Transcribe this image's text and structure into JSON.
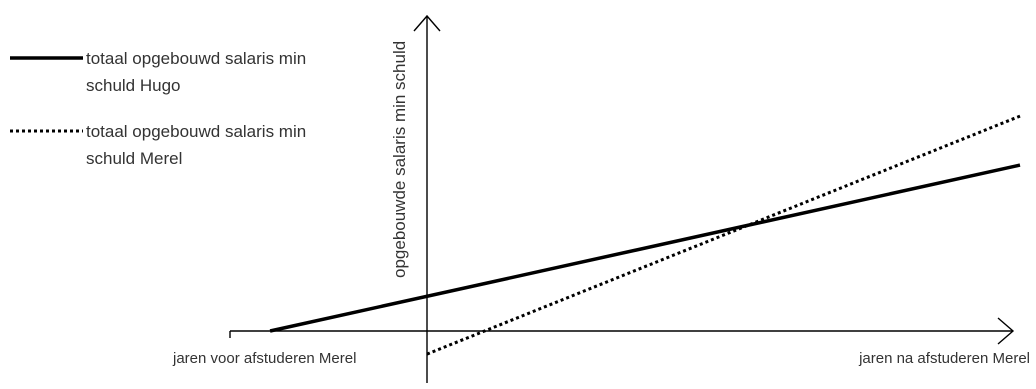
{
  "chart_data": {
    "type": "line",
    "title": "",
    "xlabel_left": "jaren voor afstuderen Merel",
    "xlabel_right": "jaren na afstuderen Merel",
    "ylabel": "opgebouwde salaris min schuld",
    "grid": false,
    "ticks": false,
    "legend_position": "top-left",
    "series": [
      {
        "name_lines": [
          "totaal opgebouwd salaris min",
          "schuld Hugo"
        ],
        "style": "solid",
        "color": "#000000",
        "x": [
          -4.1,
          15.5
        ],
        "y": [
          0,
          6.1
        ]
      },
      {
        "name_lines": [
          "totaal opgebouwd salaris min",
          "schuld Merel"
        ],
        "style": "dotted",
        "color": "#000000",
        "x": [
          0,
          15.5
        ],
        "y": [
          -0.85,
          7.9
        ]
      }
    ],
    "xlim": [
      -5.2,
      15.7
    ],
    "ylim": [
      -1.5,
      8.8
    ]
  }
}
